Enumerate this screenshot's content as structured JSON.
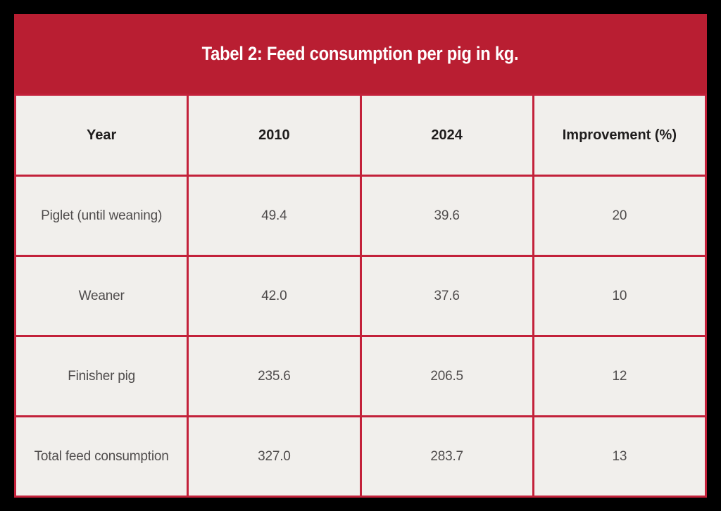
{
  "banner": {
    "title": "Tabel 2: Feed consumption per pig in kg."
  },
  "table": {
    "headers": [
      "Year",
      "2010",
      "2024",
      "Improvement (%)"
    ],
    "rows": [
      {
        "label": "Piglet (until weaning)",
        "v2010": "49.4",
        "v2024": "39.6",
        "improvement": "20"
      },
      {
        "label": "Weaner",
        "v2010": "42.0",
        "v2024": "37.6",
        "improvement": "10"
      },
      {
        "label": "Finisher pig",
        "v2010": "235.6",
        "v2024": "206.5",
        "improvement": "12"
      },
      {
        "label": "Total feed consumption",
        "v2010": "327.0",
        "v2024": "283.7",
        "improvement": "13"
      }
    ]
  },
  "colors": {
    "banner_red": "#b91e32",
    "border_red": "#c3213a",
    "cell_background": "#f1efec",
    "frame_black": "#000000",
    "title_text": "#ffffff",
    "header_text": "#1f1d1d",
    "body_text": "#4f4c4c"
  },
  "chart_data": {
    "type": "table",
    "title": "Tabel 2: Feed consumption per pig in kg.",
    "columns": [
      "Year",
      "2010",
      "2024",
      "Improvement (%)"
    ],
    "rows": [
      [
        "Piglet (until weaning)",
        49.4,
        39.6,
        20
      ],
      [
        "Weaner",
        42.0,
        37.6,
        10
      ],
      [
        "Finisher pig",
        235.6,
        206.5,
        12
      ],
      [
        "Total feed consumption",
        327.0,
        283.7,
        13
      ]
    ],
    "units": "kg per pig",
    "layout_hints": {
      "title_position": "top banner, centered, white on red",
      "grid": "red borders on all cells",
      "column_widths": "equal (25% each)"
    }
  }
}
